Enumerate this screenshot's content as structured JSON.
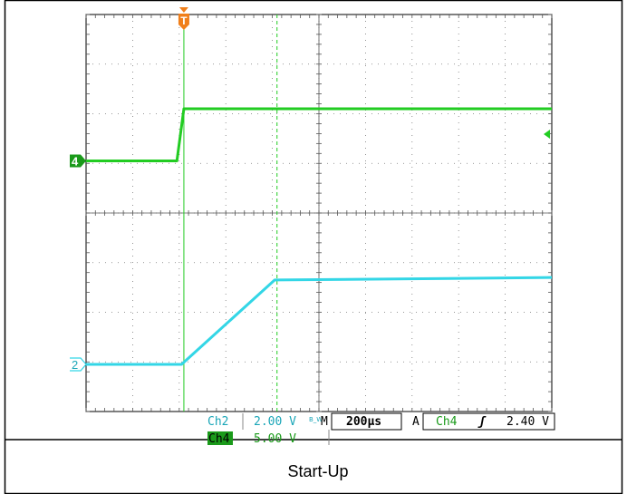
{
  "chart_data": {
    "type": "line",
    "title": "",
    "caption": "Start-Up",
    "grid": true,
    "x_divisions": 10,
    "y_divisions": 8,
    "timebase": "200µs",
    "x_range_divisions": [
      0,
      10
    ],
    "y_range_divisions": [
      -4,
      4
    ],
    "channels": [
      {
        "id": "ch2",
        "marker": "2",
        "label": "Ch2",
        "scale": "2.00 V",
        "bw_flag": "B_W",
        "color": "#33d6e6"
      },
      {
        "id": "ch4",
        "marker": "4",
        "label": "Ch4",
        "scale": "5.00 V",
        "color": "#22cc22"
      }
    ],
    "trigger": {
      "marker": "T",
      "mode": "A",
      "source": "Ch4",
      "slope": "rising",
      "level": "2.40 V",
      "position_div": 2.1
    },
    "cursor_div": 4.1,
    "series": [
      {
        "name": "Ch4",
        "color": "#22cc22",
        "points": [
          [
            0,
            1.05
          ],
          [
            1.95,
            1.05
          ],
          [
            2.1,
            2.1
          ],
          [
            10,
            2.1
          ]
        ]
      },
      {
        "name": "Ch2",
        "color": "#33d6e6",
        "points": [
          [
            0,
            -3.05
          ],
          [
            2.05,
            -3.05
          ],
          [
            4.05,
            -1.35
          ],
          [
            10,
            -1.3
          ]
        ]
      }
    ],
    "status_bar": {
      "ch2_label": "Ch2",
      "ch2_scale": "2.00 V",
      "bw_text": "B_W",
      "m_label": "M",
      "timebase": "200µs",
      "trigger_mode": "A",
      "trigger_source": "Ch4",
      "slope_glyph": "⅀",
      "trigger_level": "2.40 V",
      "ch4_label": "Ch4",
      "ch4_scale": "5.00 V"
    },
    "markers": {
      "ch4": "4",
      "ch2": "2",
      "trigger": "T"
    }
  }
}
